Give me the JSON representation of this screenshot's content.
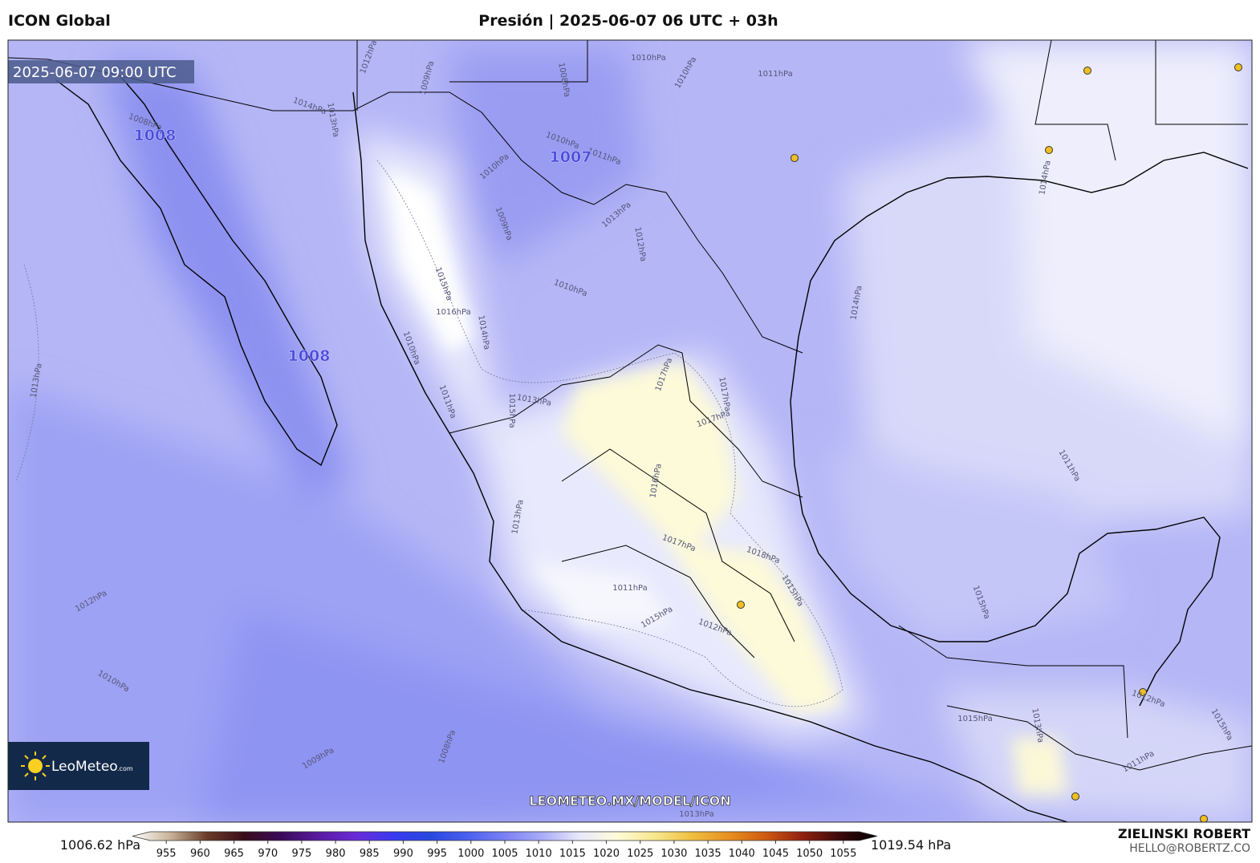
{
  "header": {
    "model": "ICON Global",
    "title": "Presión | 2025-06-07 06 UTC + 03h"
  },
  "valid_time": "2025-06-07 09:00 UTC",
  "lows": [
    "1008",
    "1008",
    "1007"
  ],
  "contour_labels": [
    "1012hPa",
    "1009hPa",
    "1008hPa",
    "1010hPa",
    "1010hPa",
    "1011hPa",
    "1014hPa",
    "1013hPa",
    "1008hPa",
    "1010hPa",
    "1011hPa",
    "1010hPa",
    "1009hPa",
    "1013hPa",
    "1012hPa",
    "1015hPa",
    "1016hPa",
    "1014hPa",
    "1010hPa",
    "1010hPa",
    "1011hPa",
    "1013hPa",
    "1015hPa",
    "1017hPa",
    "1017hPa",
    "1017hPa",
    "1016hPa",
    "1017hPa",
    "1018hPa",
    "1015hPa",
    "1011hPa",
    "1015hPa",
    "1012hPa",
    "1013hPa",
    "1014hPa",
    "1011hPa",
    "1015hPa",
    "1013hPa",
    "1012hPa",
    "1010hPa",
    "1009hPa",
    "1008hPa",
    "1013hPa",
    "1015hPa",
    "1013hPa",
    "1012hPa",
    "1011hPa",
    "1015hPa",
    "1014hPa"
  ],
  "watermark": "LEOMETEO.MX/MODEL/ICON",
  "logo": {
    "name": "LeoMeteo",
    "suffix": ".com"
  },
  "author": {
    "name": "ZIELINSKI ROBERT",
    "email": "HELLO@ROBERTZ.CO"
  },
  "colorbar": {
    "range": [
      950,
      1060
    ],
    "ticks": [
      955,
      960,
      965,
      970,
      975,
      980,
      985,
      990,
      995,
      1000,
      1005,
      1010,
      1015,
      1020,
      1025,
      1030,
      1035,
      1040,
      1045,
      1050,
      1055
    ],
    "min": {
      "value": 1006.62,
      "label": "1006.62 hPa"
    },
    "max": {
      "value": 1019.54,
      "label": "1019.54 hPa"
    },
    "colors": [
      "#ffffff",
      "#c8b49a",
      "#6a3c28",
      "#3a0c1a",
      "#3c0a5a",
      "#5a1aa0",
      "#6a2ad8",
      "#3a3af0",
      "#2848e0",
      "#4a60f0",
      "#7a80f4",
      "#a8acf8",
      "#e8e8fc",
      "#fffbd8",
      "#f8e890",
      "#f0c040",
      "#e89020",
      "#d05a10",
      "#902010",
      "#3a0a0a",
      "#000000"
    ]
  }
}
